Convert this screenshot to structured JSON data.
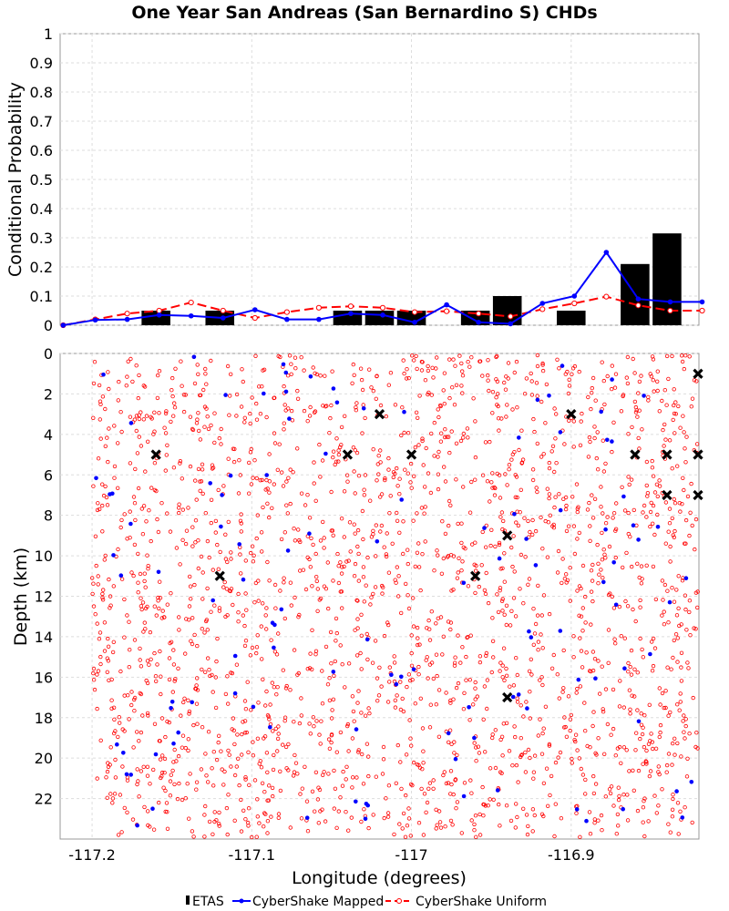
{
  "chart_data": [
    {
      "type": "bar+line",
      "id": "probability",
      "title": "One Year San Andreas (San Bernardino S) CHDs",
      "ylabel": "Conditional Probability",
      "xlabel": "Longitude (degrees)",
      "xlim": [
        -117.22,
        -116.82
      ],
      "ylim": [
        0,
        1
      ],
      "yticks": [
        "0",
        "0.1",
        "0.2",
        "0.3",
        "0.4",
        "0.5",
        "0.6",
        "0.7",
        "0.8",
        "0.9",
        "1"
      ],
      "xticks": [
        "-117.2",
        "-117.1",
        "-117",
        "-116.9"
      ],
      "grid": true,
      "series": [
        {
          "name": "ETAS",
          "kind": "bar",
          "color": "#000000",
          "bar_width": 0.018,
          "x": [
            -117.16,
            -117.12,
            -117.04,
            -117.02,
            -117.0,
            -116.96,
            -116.94,
            -116.9,
            -116.86,
            -116.84
          ],
          "values": [
            0.05,
            0.05,
            0.05,
            0.05,
            0.05,
            0.05,
            0.1,
            0.05,
            0.21,
            0.315
          ]
        },
        {
          "name": "CyberShake Mapped",
          "kind": "line",
          "color": "#0000ff",
          "x": [
            -117.2181,
            -117.198,
            -117.178,
            -117.158,
            -117.138,
            -117.118,
            -117.098,
            -117.078,
            -117.058,
            -117.038,
            -117.018,
            -116.998,
            -116.978,
            -116.958,
            -116.938,
            -116.918,
            -116.898,
            -116.878,
            -116.858,
            -116.838,
            -116.818
          ],
          "values": [
            0.0,
            0.018,
            0.02,
            0.035,
            0.032,
            0.025,
            0.053,
            0.02,
            0.02,
            0.04,
            0.035,
            0.01,
            0.07,
            0.01,
            0.005,
            0.075,
            0.1,
            0.25,
            0.09,
            0.08,
            0.08
          ]
        },
        {
          "name": "CyberShake Uniform",
          "kind": "line-dashed",
          "color": "#ff0000",
          "x": [
            -117.2181,
            -117.198,
            -117.178,
            -117.158,
            -117.138,
            -117.118,
            -117.098,
            -117.078,
            -117.058,
            -117.038,
            -117.018,
            -116.998,
            -116.978,
            -116.958,
            -116.938,
            -116.918,
            -116.898,
            -116.878,
            -116.858,
            -116.838,
            -116.818
          ],
          "values": [
            0.0,
            0.02,
            0.04,
            0.05,
            0.078,
            0.05,
            0.025,
            0.045,
            0.06,
            0.065,
            0.06,
            0.045,
            0.048,
            0.04,
            0.03,
            0.055,
            0.075,
            0.098,
            0.068,
            0.05,
            0.05
          ]
        }
      ]
    },
    {
      "type": "scatter",
      "id": "hypocenters",
      "ylabel": "Depth (km)",
      "xlabel": "Longitude (degrees)",
      "xlim": [
        -117.22,
        -116.82
      ],
      "ylim": [
        0,
        24
      ],
      "y_inverted": true,
      "yticks": [
        "0",
        "2",
        "4",
        "6",
        "8",
        "10",
        "12",
        "14",
        "16",
        "18",
        "20",
        "22"
      ],
      "xticks": [
        "-117.2",
        "-117.1",
        "-117",
        "-116.9"
      ],
      "grid": true,
      "series": [
        {
          "name": "ETAS",
          "marker": "x",
          "color": "#000000",
          "points": [
            [
              -117.16,
              5
            ],
            [
              -117.12,
              11
            ],
            [
              -117.04,
              5
            ],
            [
              -117.02,
              3
            ],
            [
              -117.0,
              5
            ],
            [
              -116.96,
              11
            ],
            [
              -116.94,
              9
            ],
            [
              -116.94,
              17
            ],
            [
              -116.9,
              3
            ],
            [
              -116.86,
              5
            ],
            [
              -116.84,
              5
            ],
            [
              -116.84,
              7
            ],
            [
              -116.82,
              1
            ],
            [
              -116.82,
              5
            ],
            [
              -116.82,
              7
            ]
          ]
        },
        {
          "name": "CyberShake Mapped",
          "marker": "dot",
          "color": "#0000ff",
          "note": "random scatter of mapped hypocenters; count estimated",
          "count": 120,
          "x_range": [
            -117.2,
            -116.82
          ],
          "y_range": [
            0,
            24
          ]
        },
        {
          "name": "CyberShake Uniform",
          "marker": "open-circle",
          "color": "#ff0000",
          "note": "dense uniform random scatter of hypocenters; count estimated",
          "count": 2300,
          "x_range": [
            -117.2,
            -116.82
          ],
          "y_range": [
            0,
            24
          ]
        }
      ]
    }
  ],
  "legend": {
    "items": [
      {
        "name": "ETAS"
      },
      {
        "name": "CyberShake Mapped"
      },
      {
        "name": "CyberShake Uniform"
      }
    ]
  }
}
